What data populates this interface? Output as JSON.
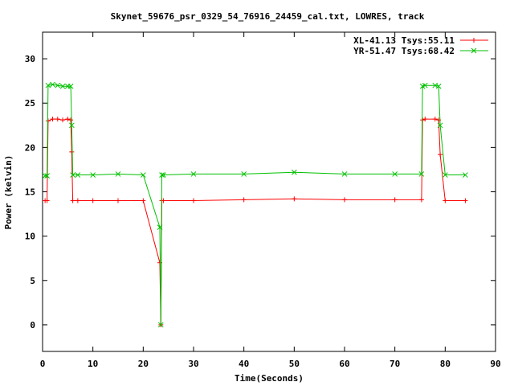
{
  "chart_data": {
    "type": "line",
    "title": "Skynet_59676_psr_0329_54_76916_24459_cal.txt, LOWRES, track",
    "xlabel": "Time(Seconds)",
    "ylabel": "Power (kelvin)",
    "xlim": [
      0,
      90
    ],
    "ylim": [
      -3,
      33
    ],
    "xticks": [
      0,
      10,
      20,
      30,
      40,
      50,
      60,
      70,
      80,
      90
    ],
    "yticks": [
      0,
      5,
      10,
      15,
      20,
      25,
      30
    ],
    "grid": false,
    "legend_position": "top-right",
    "series": [
      {
        "name": "XL-41.13 Tsys:55.11",
        "color": "#ff0000",
        "marker": "plus",
        "x": [
          0.5,
          0.9,
          1.1,
          2,
          3,
          4,
          5,
          5.6,
          5.8,
          6.0,
          7,
          10,
          15,
          20,
          23.3,
          23.5,
          23.7,
          24,
          30,
          40,
          50,
          60,
          70,
          75.3,
          75.5,
          76,
          78,
          78.7,
          79.0,
          80,
          84
        ],
        "y": [
          14,
          14,
          23,
          23.2,
          23.2,
          23.1,
          23.2,
          23.1,
          19.5,
          14,
          14,
          14,
          14,
          14,
          7,
          0,
          14,
          14,
          14,
          14.1,
          14.2,
          14.1,
          14.1,
          14.1,
          23.1,
          23.2,
          23.2,
          23.1,
          19.2,
          14,
          14
        ]
      },
      {
        "name": "YR-51.47 Tsys:68.42",
        "color": "#00c000",
        "marker": "cross",
        "x": [
          0.5,
          0.9,
          1.1,
          2,
          3,
          4,
          5,
          5.6,
          5.8,
          6.0,
          7,
          10,
          15,
          20,
          23.3,
          23.5,
          23.7,
          24,
          30,
          40,
          50,
          60,
          70,
          75.3,
          75.5,
          76,
          78,
          78.7,
          79.0,
          80,
          84
        ],
        "y": [
          16.8,
          16.8,
          27,
          27.1,
          27,
          26.9,
          26.9,
          26.9,
          22.5,
          16.9,
          16.9,
          16.9,
          17,
          16.9,
          11,
          0,
          16.9,
          16.9,
          17,
          17,
          17.2,
          17,
          17,
          17,
          26.9,
          27,
          27,
          26.9,
          22.5,
          16.9,
          16.9
        ]
      }
    ]
  }
}
